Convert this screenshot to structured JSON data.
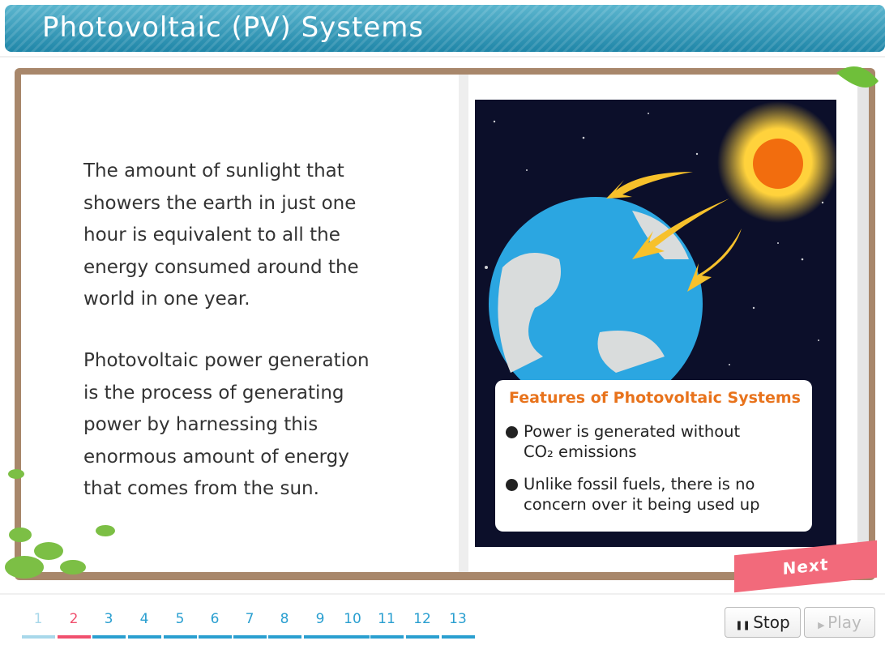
{
  "header": {
    "title": "Photovoltaic (PV) Systems"
  },
  "left_page": {
    "paragraphs": [
      [
        "The amount of sunlight that",
        "showers the earth in just one",
        "hour is equivalent to all the",
        "energy consumed around the",
        "world in one year."
      ],
      [
        "Photovoltaic power generation",
        "is the process of generating",
        "power by harnessing this",
        "enormous amount of energy",
        "that comes from the sun."
      ]
    ]
  },
  "features": {
    "title": "Features of Photovoltaic Systems",
    "bullets": [
      [
        "Power is generated without",
        "CO₂ emissions"
      ],
      [
        "Unlike fossil fuels, there is no",
        "concern over it being used up"
      ]
    ]
  },
  "next_button": "Next",
  "pagination": {
    "pages": [
      "1",
      "2",
      "3",
      "4",
      "5",
      "6",
      "7",
      "8",
      "9",
      "10",
      "11",
      "12",
      "13"
    ]
  },
  "controls": {
    "stop": "Stop",
    "play": "Play"
  }
}
